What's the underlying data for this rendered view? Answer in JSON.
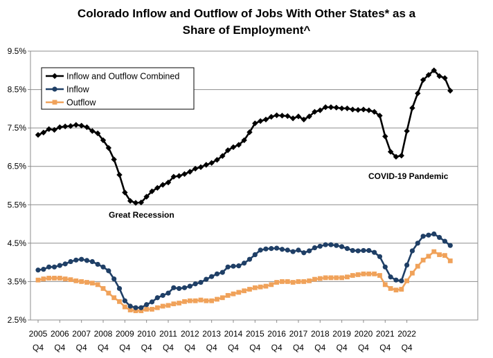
{
  "chart_data": {
    "type": "line",
    "title_line1": "Colorado Inflow and Outflow of Jobs With Other States* as a",
    "title_line2": "Share of Employment^",
    "ylim": [
      2.5,
      9.5
    ],
    "yticks": [
      "2.5%",
      "3.5%",
      "4.5%",
      "5.5%",
      "6.5%",
      "7.5%",
      "8.5%",
      "9.5%"
    ],
    "ytick_values": [
      2.5,
      3.5,
      4.5,
      5.5,
      6.5,
      7.5,
      8.5,
      9.5
    ],
    "x_start_year": 2005,
    "x_quarter_label": "Q4",
    "xticks": [
      "2005",
      "2006",
      "2007",
      "2008",
      "2009",
      "2010",
      "2011",
      "2012",
      "2013",
      "2014",
      "2015",
      "2016",
      "2017",
      "2018",
      "2019",
      "2020",
      "2021",
      "2022"
    ],
    "grid": true,
    "legend_position": "top-left",
    "annotations": [
      {
        "label": "Great Recession",
        "color": "#000000"
      },
      {
        "label": "COVID-19 Pandemic",
        "color": "#000000"
      }
    ],
    "series": [
      {
        "name": "Inflow and Outflow Combined",
        "color": "#000000",
        "marker": "diamond",
        "values": [
          7.32,
          7.38,
          7.47,
          7.45,
          7.52,
          7.54,
          7.55,
          7.58,
          7.56,
          7.52,
          7.42,
          7.36,
          7.18,
          6.98,
          6.68,
          6.28,
          5.82,
          5.6,
          5.55,
          5.56,
          5.71,
          5.85,
          5.94,
          6.02,
          6.08,
          6.23,
          6.25,
          6.3,
          6.36,
          6.44,
          6.48,
          6.54,
          6.59,
          6.67,
          6.77,
          6.92,
          7.0,
          7.06,
          7.18,
          7.39,
          7.62,
          7.68,
          7.72,
          7.79,
          7.83,
          7.82,
          7.81,
          7.75,
          7.8,
          7.72,
          7.8,
          7.92,
          7.96,
          8.04,
          8.04,
          8.03,
          8.01,
          8.01,
          7.98,
          7.97,
          7.98,
          7.96,
          7.92,
          7.82,
          7.28,
          6.88,
          6.75,
          6.78,
          7.42,
          8.02,
          8.4,
          8.75,
          8.88,
          9.0,
          8.85,
          8.8,
          8.47
        ]
      },
      {
        "name": "Inflow",
        "color": "#1F3F66",
        "marker": "circle",
        "values": [
          3.8,
          3.82,
          3.88,
          3.88,
          3.92,
          3.96,
          4.02,
          4.06,
          4.08,
          4.05,
          4.02,
          3.95,
          3.88,
          3.78,
          3.57,
          3.32,
          3.0,
          2.86,
          2.82,
          2.82,
          2.9,
          2.97,
          3.08,
          3.14,
          3.2,
          3.34,
          3.32,
          3.34,
          3.38,
          3.44,
          3.48,
          3.56,
          3.63,
          3.7,
          3.74,
          3.88,
          3.9,
          3.91,
          3.98,
          4.08,
          4.2,
          4.32,
          4.35,
          4.36,
          4.37,
          4.34,
          4.32,
          4.28,
          4.32,
          4.25,
          4.3,
          4.38,
          4.42,
          4.46,
          4.46,
          4.44,
          4.41,
          4.36,
          4.31,
          4.3,
          4.31,
          4.31,
          4.26,
          4.15,
          3.88,
          3.62,
          3.54,
          3.52,
          3.93,
          4.3,
          4.5,
          4.68,
          4.71,
          4.74,
          4.65,
          4.55,
          4.44
        ]
      },
      {
        "name": "Outflow",
        "color": "#F0A25A",
        "marker": "square",
        "values": [
          3.54,
          3.57,
          3.59,
          3.59,
          3.59,
          3.57,
          3.55,
          3.52,
          3.5,
          3.48,
          3.46,
          3.42,
          3.32,
          3.2,
          3.08,
          2.98,
          2.84,
          2.76,
          2.74,
          2.74,
          2.78,
          2.78,
          2.82,
          2.86,
          2.88,
          2.92,
          2.94,
          2.98,
          3.0,
          3.0,
          3.02,
          3.0,
          3.0,
          3.04,
          3.08,
          3.14,
          3.18,
          3.22,
          3.26,
          3.3,
          3.34,
          3.36,
          3.38,
          3.42,
          3.48,
          3.5,
          3.5,
          3.48,
          3.5,
          3.5,
          3.52,
          3.56,
          3.58,
          3.6,
          3.6,
          3.6,
          3.6,
          3.62,
          3.66,
          3.68,
          3.7,
          3.7,
          3.7,
          3.66,
          3.42,
          3.32,
          3.28,
          3.3,
          3.52,
          3.72,
          3.9,
          4.06,
          4.16,
          4.28,
          4.2,
          4.18,
          4.04
        ]
      }
    ]
  }
}
